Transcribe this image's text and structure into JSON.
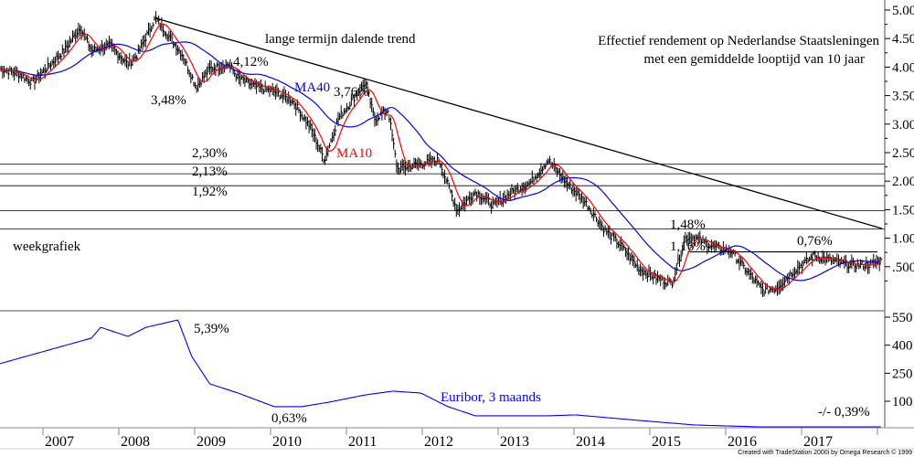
{
  "chart_data": {
    "type": "line",
    "title": [
      "Effectief rendement op Nederlandse Staatsleningen",
      "met een gemiddelde looptijd van 10 jaar"
    ],
    "subtitle": "weekgrafiek",
    "x_ticks": [
      "2007",
      "2008",
      "2009",
      "2010",
      "2011",
      "2012",
      "2013",
      "2014",
      "2015",
      "2016",
      "2017"
    ],
    "xlim": [
      2006.43,
      2018.1
    ],
    "upper_panel": {
      "y_ticks": [
        "5.00",
        "4.50",
        "4.00",
        "3.50",
        "3.00",
        "2.50",
        "2.00",
        "1.50",
        "1.00",
        ".500"
      ],
      "ylim": [
        0.0,
        5.1
      ],
      "series": [
        {
          "name": "Rendement (weekly bars)",
          "color": "#000000",
          "points": [
            [
              2006.43,
              3.97
            ],
            [
              2006.67,
              3.89
            ],
            [
              2006.86,
              3.73
            ],
            [
              2007.04,
              3.97
            ],
            [
              2007.28,
              4.29
            ],
            [
              2007.49,
              4.7
            ],
            [
              2007.64,
              4.29
            ],
            [
              2007.88,
              4.38
            ],
            [
              2008.12,
              4.05
            ],
            [
              2008.24,
              4.21
            ],
            [
              2008.48,
              4.86
            ],
            [
              2008.66,
              4.54
            ],
            [
              2008.84,
              4.21
            ],
            [
              2009.02,
              3.65
            ],
            [
              2009.2,
              3.97
            ],
            [
              2009.45,
              4.05
            ],
            [
              2009.57,
              3.81
            ],
            [
              2009.81,
              3.65
            ],
            [
              2010.05,
              3.57
            ],
            [
              2010.29,
              3.41
            ],
            [
              2010.53,
              2.93
            ],
            [
              2010.71,
              2.37
            ],
            [
              2010.89,
              3.09
            ],
            [
              2011.07,
              3.41
            ],
            [
              2011.25,
              3.73
            ],
            [
              2011.37,
              3.09
            ],
            [
              2011.55,
              3.25
            ],
            [
              2011.67,
              2.21
            ],
            [
              2011.92,
              2.29
            ],
            [
              2012.22,
              2.37
            ],
            [
              2012.46,
              1.49
            ],
            [
              2012.7,
              1.81
            ],
            [
              2012.94,
              1.57
            ],
            [
              2013.18,
              1.81
            ],
            [
              2013.42,
              1.97
            ],
            [
              2013.66,
              2.37
            ],
            [
              2013.9,
              1.97
            ],
            [
              2014.14,
              1.65
            ],
            [
              2014.39,
              1.17
            ],
            [
              2014.63,
              0.85
            ],
            [
              2014.87,
              0.45
            ],
            [
              2015.11,
              0.29
            ],
            [
              2015.29,
              0.21
            ],
            [
              2015.47,
              1.01
            ],
            [
              2015.59,
              1.01
            ],
            [
              2015.83,
              0.85
            ],
            [
              2016.07,
              0.77
            ],
            [
              2016.31,
              0.37
            ],
            [
              2016.49,
              0.08
            ],
            [
              2016.67,
              0.13
            ],
            [
              2016.92,
              0.45
            ],
            [
              2017.16,
              0.69
            ],
            [
              2017.4,
              0.61
            ],
            [
              2017.64,
              0.53
            ],
            [
              2017.88,
              0.53
            ],
            [
              2018.06,
              0.61
            ]
          ]
        },
        {
          "name": "MA10",
          "color": "#ff0000"
        },
        {
          "name": "MA40",
          "color": "#0000ff"
        }
      ],
      "horizontal_lines": [
        2.3,
        2.13,
        1.92,
        1.48,
        1.16
      ],
      "resistance_segment": {
        "value": 0.76,
        "from": 2015.5,
        "to": 2018.0
      },
      "trend_line": {
        "from": [
          2008.48,
          4.86
        ],
        "to": [
          2018.06,
          1.17
        ]
      }
    },
    "lower_panel": {
      "name": "Euribor, 3 maands",
      "color": "#0000ff",
      "y_ticks": [
        "550",
        "400",
        "250",
        "100"
      ],
      "ylim": [
        -40,
        600
      ],
      "points": [
        [
          2006.43,
          301
        ],
        [
          2007.64,
          438
        ],
        [
          2007.76,
          496
        ],
        [
          2008.12,
          447
        ],
        [
          2008.36,
          496
        ],
        [
          2008.78,
          535
        ],
        [
          2008.96,
          340
        ],
        [
          2009.2,
          193
        ],
        [
          2009.57,
          144
        ],
        [
          2010.05,
          71
        ],
        [
          2010.41,
          71
        ],
        [
          2010.77,
          95
        ],
        [
          2011.25,
          134
        ],
        [
          2011.61,
          154
        ],
        [
          2011.98,
          144
        ],
        [
          2012.34,
          71
        ],
        [
          2012.7,
          22
        ],
        [
          2013.66,
          22
        ],
        [
          2014.02,
          27
        ],
        [
          2014.87,
          -3
        ],
        [
          2015.59,
          -27
        ],
        [
          2016.43,
          -37
        ],
        [
          2018.06,
          -37
        ]
      ]
    },
    "annotations": {
      "trend": "lange termijn dalende trend",
      "a412": "4,12%",
      "a348": "3,48%",
      "a376": "3,76%",
      "ma40": "MA40",
      "ma10": "MA10",
      "a230": "2,30%",
      "a213": "2,13%",
      "a192": "1,92%",
      "a148": "1,48%",
      "a116": "1,16%",
      "a076": "0,76%",
      "a539": "5,39%",
      "a063": "0,63%",
      "a039": "-/- 0,39%",
      "euribor": "Euribor, 3 maands"
    },
    "footer": "Created with TradeStation 2000i by Omega Research © 1999"
  }
}
